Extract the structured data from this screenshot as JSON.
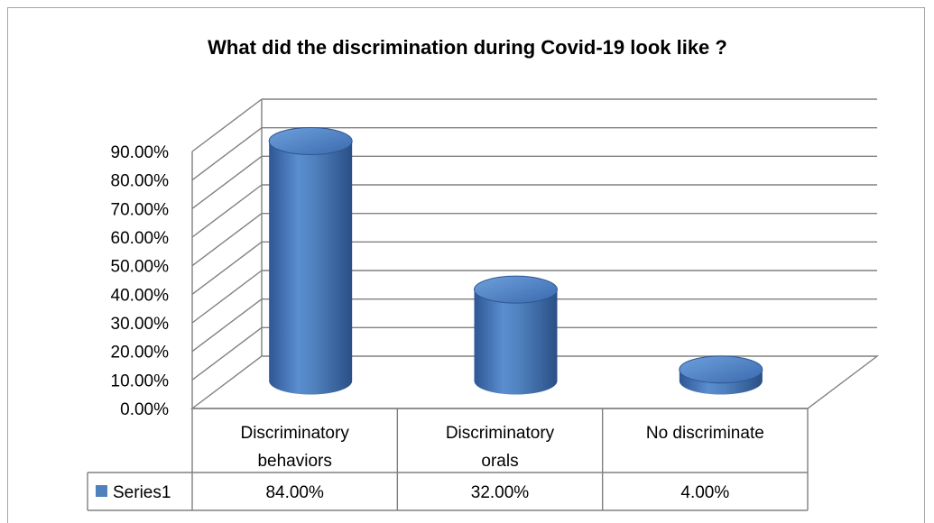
{
  "chart_data": {
    "type": "bar",
    "title": "What did the discrimination during Covid-19 look like ?",
    "categories": [
      "Discriminatory behaviors",
      "Discriminatory orals",
      "No discriminate"
    ],
    "category_lines": [
      [
        "Discriminatory",
        "behaviors"
      ],
      [
        "Discriminatory",
        "orals"
      ],
      [
        "No discriminate"
      ]
    ],
    "series": [
      {
        "name": "Series1",
        "values": [
          0.84,
          0.32,
          0.04
        ],
        "labels": [
          "84.00%",
          "32.00%",
          "4.00%"
        ]
      }
    ],
    "ylim": [
      0,
      0.9
    ],
    "yticks": [
      "0.00%",
      "10.00%",
      "20.00%",
      "30.00%",
      "40.00%",
      "50.00%",
      "60.00%",
      "70.00%",
      "80.00%",
      "90.00%"
    ],
    "grid": true,
    "legend": "data-table",
    "style": "3d-cylinder",
    "colors": {
      "bar": "#4F81BD",
      "bar_dark": "#2E5694",
      "bar_light": "#8DB3E2",
      "grid": "#808080",
      "border": "#A6A6A6"
    }
  }
}
